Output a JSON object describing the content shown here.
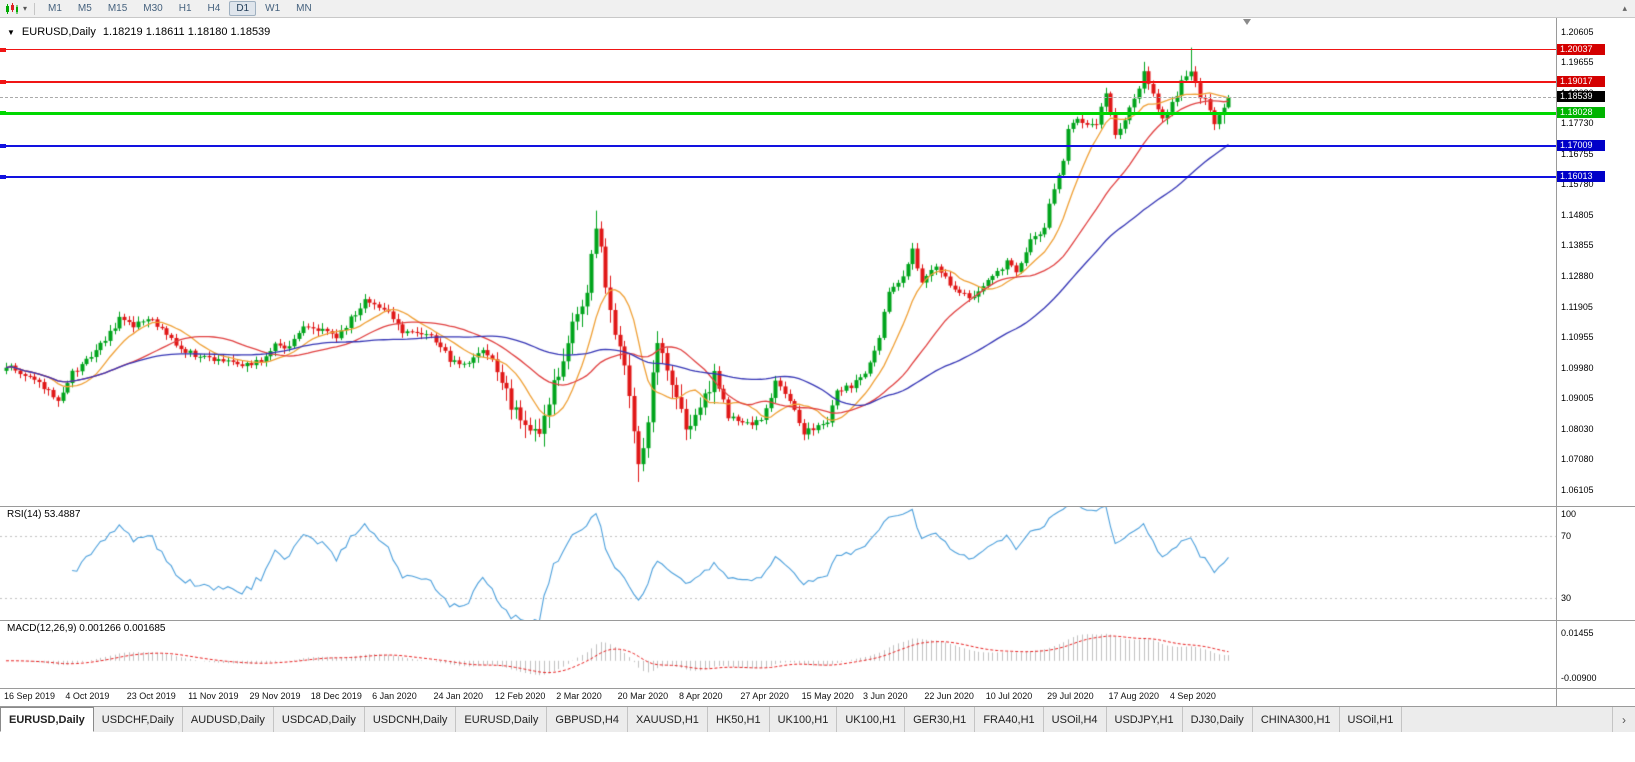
{
  "icons": {
    "one_click_trading": "▼",
    "toolbar_dropdown": "▾",
    "toolbar_scroll_up": "▴",
    "tab_scroll_right": "›"
  },
  "toolbar": {
    "timeframes": [
      {
        "label": "M1",
        "active": false
      },
      {
        "label": "M5",
        "active": false
      },
      {
        "label": "M15",
        "active": false
      },
      {
        "label": "M30",
        "active": false
      },
      {
        "label": "H1",
        "active": false
      },
      {
        "label": "H4",
        "active": false
      },
      {
        "label": "D1",
        "active": true
      },
      {
        "label": "W1",
        "active": false
      },
      {
        "label": "MN",
        "active": false
      }
    ]
  },
  "chart_header": {
    "symbol": "EURUSD,Daily",
    "ohlc": "1.18219 1.18611 1.18180 1.18539"
  },
  "bottom_tabs": {
    "items": [
      {
        "label": "EURUSD,Daily",
        "active": true
      },
      {
        "label": "USDCHF,Daily",
        "active": false
      },
      {
        "label": "AUDUSD,Daily",
        "active": false
      },
      {
        "label": "USDCAD,Daily",
        "active": false
      },
      {
        "label": "USDCNH,Daily",
        "active": false
      },
      {
        "label": "EURUSD,Daily",
        "active": false
      },
      {
        "label": "GBPUSD,H4",
        "active": false
      },
      {
        "label": "XAUUSD,H1",
        "active": false
      },
      {
        "label": "HK50,H1",
        "active": false
      },
      {
        "label": "UK100,H1",
        "active": false
      },
      {
        "label": "UK100,H1",
        "active": false
      },
      {
        "label": "GER30,H1",
        "active": false
      },
      {
        "label": "FRA40,H1",
        "active": false
      },
      {
        "label": "USOil,H4",
        "active": false
      },
      {
        "label": "USDJPY,H1",
        "active": false
      },
      {
        "label": "DJ30,Daily",
        "active": false
      },
      {
        "label": "CHINA300,H1",
        "active": false
      },
      {
        "label": "USOil,H1",
        "active": false
      }
    ]
  },
  "chart_data": {
    "type": "candlestick",
    "symbol": "EURUSD",
    "timeframe": "Daily",
    "ohlc_display": {
      "open": "1.18219",
      "high": "1.18611",
      "low": "1.18180",
      "close": "1.18539"
    },
    "last_price": 1.18539,
    "candle_count": 260,
    "bull_color": "#00a41c",
    "bear_color": "#e01717",
    "y_range": [
      1.06105,
      1.20605
    ],
    "y_axis_labels": [
      "1.20605",
      "1.19655",
      "1.18680",
      "1.17730",
      "1.16755",
      "1.15780",
      "1.14805",
      "1.13855",
      "1.12880",
      "1.11905",
      "1.10955",
      "1.09980",
      "1.09005",
      "1.08030",
      "1.07080",
      "1.06105"
    ],
    "x_labels": [
      "16 Sep 2019",
      "4 Oct 2019",
      "23 Oct 2019",
      "11 Nov 2019",
      "29 Nov 2019",
      "18 Dec 2019",
      "6 Jan 2020",
      "24 Jan 2020",
      "12 Feb 2020",
      "2 Mar 2020",
      "20 Mar 2020",
      "8 Apr 2020",
      "27 Apr 2020",
      "15 May 2020",
      "3 Jun 2020",
      "22 Jun 2020",
      "10 Jul 2020",
      "29 Jul 2020",
      "17 Aug 2020",
      "4 Sep 2020"
    ],
    "x_label_every": 13,
    "price_anchors": [
      [
        0,
        1.1005
      ],
      [
        5,
        1.0965
      ],
      [
        11,
        1.09
      ],
      [
        14,
        1.098
      ],
      [
        18,
        1.103
      ],
      [
        24,
        1.115
      ],
      [
        27,
        1.113
      ],
      [
        31,
        1.115
      ],
      [
        36,
        1.107
      ],
      [
        40,
        1.1035
      ],
      [
        45,
        1.102
      ],
      [
        50,
        1.101
      ],
      [
        54,
        1.1017
      ],
      [
        57,
        1.1077
      ],
      [
        60,
        1.106
      ],
      [
        63,
        1.113
      ],
      [
        67,
        1.1113
      ],
      [
        70,
        1.109
      ],
      [
        76,
        1.1213
      ],
      [
        80,
        1.119
      ],
      [
        84,
        1.1115
      ],
      [
        90,
        1.1095
      ],
      [
        94,
        1.1025
      ],
      [
        98,
        1.101
      ],
      [
        101,
        1.1055
      ],
      [
        104,
        1.1
      ],
      [
        107,
        1.0873
      ],
      [
        113,
        1.079
      ],
      [
        117,
        1.0985
      ],
      [
        120,
        1.1135
      ],
      [
        123,
        1.1245
      ],
      [
        125,
        1.145
      ],
      [
        127,
        1.127
      ],
      [
        129,
        1.1105
      ],
      [
        131,
        1.0995
      ],
      [
        134,
        1.069
      ],
      [
        135,
        1.0725
      ],
      [
        138,
        1.109
      ],
      [
        141,
        1.096
      ],
      [
        144,
        1.0795
      ],
      [
        147,
        1.086
      ],
      [
        150,
        1.098
      ],
      [
        153,
        1.0845
      ],
      [
        157,
        1.0822
      ],
      [
        160,
        1.0826
      ],
      [
        163,
        1.095
      ],
      [
        166,
        1.09
      ],
      [
        169,
        1.0795
      ],
      [
        174,
        1.082
      ],
      [
        176,
        1.092
      ],
      [
        179,
        1.094
      ],
      [
        182,
        1.0982
      ],
      [
        185,
        1.11
      ],
      [
        187,
        1.1234
      ],
      [
        190,
        1.129
      ],
      [
        192,
        1.1375
      ],
      [
        194,
        1.126
      ],
      [
        197,
        1.132
      ],
      [
        200,
        1.1261
      ],
      [
        204,
        1.1218
      ],
      [
        207,
        1.1254
      ],
      [
        210,
        1.13
      ],
      [
        212,
        1.133
      ],
      [
        214,
        1.13
      ],
      [
        217,
        1.14
      ],
      [
        220,
        1.1446
      ],
      [
        222,
        1.1571
      ],
      [
        224,
        1.1656
      ],
      [
        225,
        1.1752
      ],
      [
        227,
        1.179
      ],
      [
        229,
        1.1778
      ],
      [
        231,
        1.1761
      ],
      [
        233,
        1.1876
      ],
      [
        235,
        1.174
      ],
      [
        238,
        1.1813
      ],
      [
        240,
        1.1872
      ],
      [
        241,
        1.1934
      ],
      [
        243,
        1.1856
      ],
      [
        245,
        1.1786
      ],
      [
        247,
        1.1831
      ],
      [
        249,
        1.1903
      ],
      [
        251,
        1.1935
      ],
      [
        253,
        1.185
      ],
      [
        254,
        1.184
      ],
      [
        256,
        1.178
      ],
      [
        257,
        1.1801
      ],
      [
        258,
        1.1813
      ],
      [
        259,
        1.18539
      ]
    ],
    "wick_overrides": {
      "113": {
        "low": 1.0778
      },
      "125": {
        "high": 1.1495
      },
      "134": {
        "low": 1.0636
      },
      "241": {
        "high": 1.1966
      },
      "251": {
        "high": 1.2011
      },
      "258": {
        "low": 1.177
      },
      "259": {
        "open": 1.18219,
        "high": 1.18611,
        "low": 1.1818
      }
    },
    "moving_averages": [
      {
        "name": "fast-ma",
        "period": 10,
        "color": "#efa036"
      },
      {
        "name": "medium-ma",
        "period": 25,
        "color": "#e04040"
      },
      {
        "name": "slow-ma",
        "period": 50,
        "color": "#3535b5"
      }
    ],
    "horizontal_lines": [
      {
        "price": "1.20037",
        "value": 1.20037,
        "color": "#f01515",
        "badge_color": "#d40000",
        "thickness": 1
      },
      {
        "price": "1.19017",
        "value": 1.19017,
        "color": "#f01515",
        "badge_color": "#d40000",
        "thickness": 2
      },
      {
        "price": "1.18028",
        "value": 1.18028,
        "color": "#00d800",
        "badge_color": "#00b400",
        "thickness": 3
      },
      {
        "price": "1.17009",
        "value": 1.17009,
        "color": "#1212e0",
        "badge_color": "#0000c8",
        "thickness": 2
      },
      {
        "price": "1.16013",
        "value": 1.16013,
        "color": "#1212e0",
        "badge_color": "#0000c8",
        "thickness": 2
      }
    ],
    "current_price": {
      "price": "1.18539",
      "value": 1.18539,
      "badge_color": "#000000",
      "line_color": "#aaaaaa"
    },
    "rsi": {
      "label": "RSI(14) 53.4887",
      "period": 14,
      "value": "53.4887",
      "levels": [
        70,
        30
      ],
      "axis_labels": [
        "100",
        "70",
        "30"
      ],
      "color": "#4da0dc"
    },
    "macd": {
      "label": "MACD(12,26,9) 0.001266 0.001685",
      "fast": 12,
      "slow": 26,
      "signal": 9,
      "values": "0.001266 0.001685",
      "axis_top": "0.01455",
      "axis_bottom": "-0.00900",
      "histogram_color": "#c0c0c0",
      "signal_color": "#e82020"
    }
  }
}
